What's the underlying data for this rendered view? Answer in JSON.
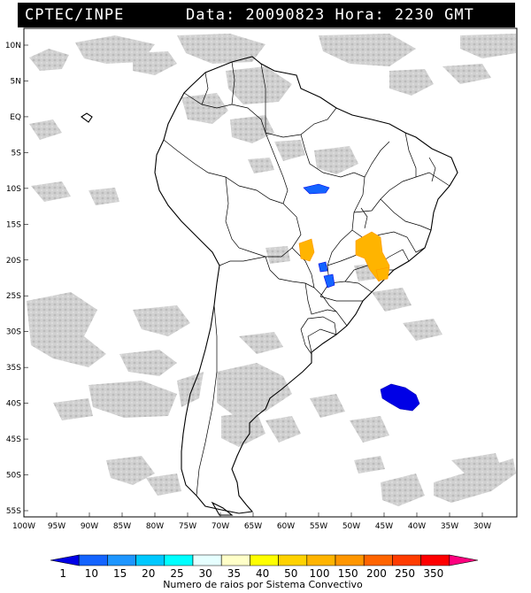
{
  "header": {
    "left": "CPTEC/INPE",
    "right": "Data: 20090823 Hora: 2230 GMT"
  },
  "axes": {
    "lat_labels": [
      "10N",
      "5N",
      "EQ",
      "5S",
      "10S",
      "15S",
      "20S",
      "25S",
      "30S",
      "35S",
      "40S",
      "45S",
      "50S",
      "55S"
    ],
    "lon_labels": [
      "100W",
      "95W",
      "90W",
      "85W",
      "80W",
      "75W",
      "70W",
      "65W",
      "60W",
      "55W",
      "50W",
      "45W",
      "40W",
      "35W",
      "30W"
    ]
  },
  "colorbar": {
    "ticks": [
      "1",
      "10",
      "15",
      "20",
      "25",
      "30",
      "35",
      "40",
      "50",
      "100",
      "150",
      "200",
      "250",
      "350"
    ],
    "colors": [
      "#0000e6",
      "#1464ff",
      "#1e96ff",
      "#00c8ff",
      "#00ffff",
      "#e6ffff",
      "#ffffc8",
      "#ffff00",
      "#ffd200",
      "#ffb400",
      "#ff9600",
      "#ff6400",
      "#ff3c00",
      "#ff0000",
      "#ff007f"
    ],
    "title": "Numero de raios por Sistema Convectivo"
  },
  "colors": {
    "cloud": "#c8c8c8",
    "cloud_dark": "#a8a8a8",
    "coast": "#000000",
    "grid": "#000000"
  },
  "legend": {
    "systems": [
      {
        "lon": -52.5,
        "lat": -9.5,
        "category": "10-15"
      },
      {
        "lon": -58.5,
        "lat": -19.0,
        "category": "100-150"
      },
      {
        "lon": -45.5,
        "lat": -18.5,
        "category": "100-150"
      },
      {
        "lon": -54.5,
        "lat": -21.0,
        "category": "10-15"
      },
      {
        "lon": -55.0,
        "lat": -22.5,
        "category": "10-15"
      },
      {
        "lon": -44.5,
        "lat": -21.5,
        "category": "100-150"
      },
      {
        "lon": -42.0,
        "lat": -39.0,
        "category": "1-10"
      }
    ]
  }
}
